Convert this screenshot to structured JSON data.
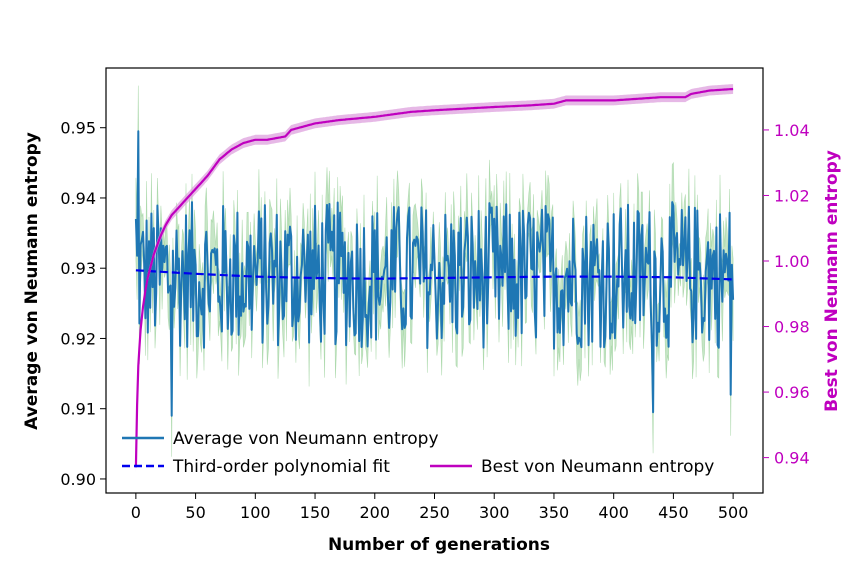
{
  "chart_data": {
    "type": "line",
    "title": "",
    "xlabel": "Number of generations",
    "ylabel_left": "Average von Neumann entropy",
    "ylabel_right": "Best von Neumann entropy",
    "xlim": [
      -25,
      525
    ],
    "ylim_left": [
      0.898,
      0.9585
    ],
    "ylim_right": [
      0.9292,
      1.0589
    ],
    "x_ticks": [
      0,
      50,
      100,
      150,
      200,
      250,
      300,
      350,
      400,
      450,
      500
    ],
    "y_ticks_left": [
      0.9,
      0.91,
      0.92,
      0.93,
      0.94,
      0.95
    ],
    "y_ticks_right": [
      0.94,
      0.96,
      0.98,
      1.0,
      1.02,
      1.04
    ],
    "legend_position": "lower-center",
    "legend": [
      {
        "label": "Average von Neumann entropy",
        "color": "#1f77b4",
        "style": "solid"
      },
      {
        "label": "Third-order polynomial fit",
        "color": "#0000ee",
        "style": "dashed"
      },
      {
        "label": "Best von Neumann entropy",
        "color": "#bf00bf",
        "style": "solid"
      }
    ],
    "series": [
      {
        "name": "Average von Neumann entropy",
        "axis": "left",
        "color": "#1f77b4",
        "band_color": "#98d098",
        "mean": 0.929,
        "amplitude": 0.0105,
        "band_extra": 0.0045,
        "x_range": [
          0,
          500
        ],
        "anchor_points": [
          [
            0,
            0.937
          ],
          [
            2,
            0.9495
          ],
          [
            30,
            0.909
          ],
          [
            433,
            0.9095
          ],
          [
            498,
            0.912
          ],
          [
            500,
            0.9255
          ]
        ]
      },
      {
        "name": "Third-order polynomial fit",
        "axis": "left",
        "color": "#0000ee",
        "points": [
          [
            0,
            0.9297
          ],
          [
            50,
            0.9292
          ],
          [
            100,
            0.9288
          ],
          [
            150,
            0.9286
          ],
          [
            200,
            0.9285
          ],
          [
            250,
            0.9286
          ],
          [
            300,
            0.9287
          ],
          [
            350,
            0.9288
          ],
          [
            400,
            0.9288
          ],
          [
            450,
            0.9287
          ],
          [
            500,
            0.9284
          ]
        ]
      },
      {
        "name": "Best von Neumann entropy",
        "axis": "right",
        "color": "#bf00bf",
        "band_color": "#dda0dd",
        "points": [
          [
            0,
            0.937
          ],
          [
            1,
            0.956
          ],
          [
            2,
            0.968
          ],
          [
            4,
            0.979
          ],
          [
            6,
            0.986
          ],
          [
            8,
            0.991
          ],
          [
            10,
            0.995
          ],
          [
            15,
            1.002
          ],
          [
            20,
            1.007
          ],
          [
            25,
            1.011
          ],
          [
            30,
            1.014
          ],
          [
            40,
            1.018
          ],
          [
            50,
            1.022
          ],
          [
            60,
            1.026
          ],
          [
            70,
            1.031
          ],
          [
            80,
            1.034
          ],
          [
            90,
            1.036
          ],
          [
            100,
            1.037
          ],
          [
            110,
            1.037
          ],
          [
            125,
            1.038
          ],
          [
            130,
            1.04
          ],
          [
            140,
            1.041
          ],
          [
            150,
            1.042
          ],
          [
            170,
            1.043
          ],
          [
            200,
            1.044
          ],
          [
            230,
            1.0455
          ],
          [
            250,
            1.046
          ],
          [
            300,
            1.047
          ],
          [
            330,
            1.0475
          ],
          [
            350,
            1.048
          ],
          [
            360,
            1.049
          ],
          [
            380,
            1.049
          ],
          [
            400,
            1.049
          ],
          [
            440,
            1.05
          ],
          [
            460,
            1.05
          ],
          [
            465,
            1.051
          ],
          [
            480,
            1.052
          ],
          [
            500,
            1.0525
          ]
        ]
      }
    ]
  }
}
